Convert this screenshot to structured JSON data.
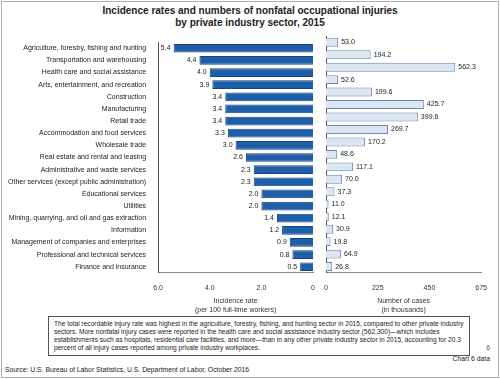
{
  "page": {
    "title": [
      "Incidence rates and numbers of nonfatal occupational injuries",
      "by private industry sector, 2015"
    ],
    "note": "The total recordable injury rate was highest in the agriculture, forestry, fishing, and hunting sector in 2015, compared to other private industry sectors. More nonfatal injury cases were reported in the health care and social assistance industry sector (562,300)—which includes establishments such as hospitals, residential care facilities, and more—than in any other private industry sector in 2015, accounting for 20.3 percent of all injury cases reported among private industry workplaces.",
    "source": "Source: U.S. Bureau of Labor Statistics, U.S. Department of Labor, October 2016",
    "link": "Chart 6 data",
    "page_number": "6"
  },
  "chart_data": [
    {
      "type": "bar",
      "orientation": "horizontal",
      "categories": [
        "Agriculture, forestry, fishing and hunting",
        "Transportation and warehousing",
        "Health care and social assistance",
        "Arts, entertainment, and recreation",
        "Construction",
        "Manufacturing",
        "Retail trade",
        "Accommodation and food services",
        "Wholesale trade",
        "Real estate and rental and leasing",
        "Administrative and waste services",
        "Other services (except public administration)",
        "Educational services",
        "Utilities",
        "Mining, quarrying, and oil and gas extraction",
        "Information",
        "Management of companies and enterprises",
        "Professional and technical services",
        "Finance and insurance"
      ],
      "values": [
        5.4,
        4.4,
        4.0,
        3.9,
        3.4,
        3.4,
        3.4,
        3.3,
        3.0,
        2.6,
        2.3,
        2.3,
        2.0,
        2.0,
        1.4,
        1.2,
        0.9,
        0.8,
        0.5
      ],
      "value_labels": [
        "5.4",
        "4.4",
        "4.0",
        "3.9",
        "3.4",
        "3.4",
        "3.4",
        "3.3",
        "3.0",
        "2.6",
        "2.3",
        "2.3",
        "2.0",
        "2.0",
        "1.4",
        "1.2",
        "0.9",
        "0.8",
        "0.5"
      ],
      "color": "#1f5ea8",
      "xlabel": [
        "Incidence rate",
        "(per 100 full-time workers)"
      ],
      "xlim": [
        6,
        0
      ],
      "xticks": [
        {
          "value": 6,
          "label": "6.0"
        },
        {
          "value": 4,
          "label": "4.0"
        },
        {
          "value": 2,
          "label": "2.0"
        },
        0
      ],
      "grid": false,
      "data_labels": true
    },
    {
      "type": "bar",
      "orientation": "horizontal",
      "categories": [
        "Agriculture, forestry, fishing and hunting",
        "Transportation and warehousing",
        "Health care and social assistance",
        "Arts, entertainment, and recreation",
        "Construction",
        "Manufacturing",
        "Retail trade",
        "Accommodation and food services",
        "Wholesale trade",
        "Real estate and rental and leasing",
        "Administrative and waste services",
        "Other services (except public administration)",
        "Educational services",
        "Utilities",
        "Mining, quarrying, and oil and gas extraction",
        "Information",
        "Management of companies and enterprises",
        "Professional and technical services",
        "Finance and insurance"
      ],
      "values": [
        53.0,
        194.2,
        562.3,
        52.6,
        199.6,
        425.7,
        399.6,
        269.7,
        170.2,
        48.6,
        117.1,
        70.0,
        37.3,
        11.0,
        12.1,
        30.9,
        19.8,
        64.9,
        26.8
      ],
      "value_labels": [
        "53.0",
        "194.2",
        "562.3",
        "52.6",
        "199.6",
        "425.7",
        "399.6",
        "269.7",
        "170.2",
        "48.6",
        "117.1",
        "70.0",
        "37.3",
        "11.0",
        "12.1",
        "30.9",
        "19.8",
        "64.9",
        "26.8"
      ],
      "color": "#dce6f2",
      "xlabel": [
        "Number of cases",
        "(in thousands)"
      ],
      "xlim": [
        0,
        675
      ],
      "xticks": [
        0,
        225,
        450,
        675
      ],
      "grid": false,
      "data_labels": true,
      "tick_labels": "x"
    }
  ]
}
